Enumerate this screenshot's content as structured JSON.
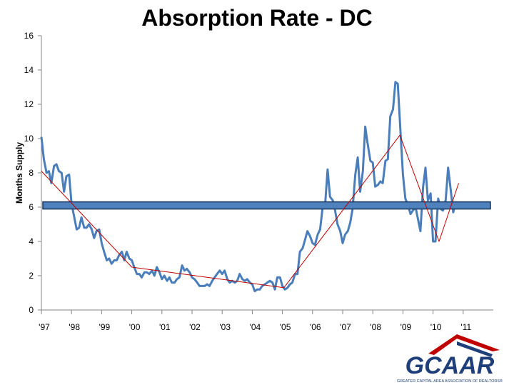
{
  "chart_data": {
    "type": "line",
    "title": "Absorption Rate - DC",
    "y_label": "Months Supply",
    "xlim": [
      1997,
      2012
    ],
    "ylim": [
      0,
      16
    ],
    "xticks": [
      {
        "value": 1997,
        "label": "'97"
      },
      {
        "value": 1998,
        "label": "'98"
      },
      {
        "value": 1999,
        "label": "'99"
      },
      {
        "value": 2000,
        "label": "'00"
      },
      {
        "value": 2001,
        "label": "'01"
      },
      {
        "value": 2002,
        "label": "'02"
      },
      {
        "value": 2003,
        "label": "'03"
      },
      {
        "value": 2004,
        "label": "'04"
      },
      {
        "value": 2005,
        "label": "'05"
      },
      {
        "value": 2006,
        "label": "'06"
      },
      {
        "value": 2007,
        "label": "'07"
      },
      {
        "value": 2008,
        "label": "'08"
      },
      {
        "value": 2009,
        "label": "'09"
      },
      {
        "value": 2010,
        "label": "'10"
      },
      {
        "value": 2011,
        "label": "'11"
      }
    ],
    "yticks": [
      0,
      2,
      4,
      6,
      8,
      10,
      12,
      14,
      16
    ],
    "reference_band": {
      "value": 6.1,
      "color": "#4f81bd",
      "edge": "#17375e"
    },
    "series": [
      {
        "color": "#4a7ebb",
        "width": 3,
        "x": [
          1997.0,
          1997.08,
          1997.17,
          1997.25,
          1997.33,
          1997.42,
          1997.5,
          1997.58,
          1997.67,
          1997.75,
          1997.83,
          1997.92,
          1998.0,
          1998.08,
          1998.17,
          1998.25,
          1998.33,
          1998.42,
          1998.5,
          1998.58,
          1998.67,
          1998.75,
          1998.83,
          1998.92,
          1999.0,
          1999.08,
          1999.17,
          1999.25,
          1999.33,
          1999.42,
          1999.5,
          1999.58,
          1999.67,
          1999.75,
          1999.83,
          1999.92,
          2000.0,
          2000.08,
          2000.17,
          2000.25,
          2000.33,
          2000.42,
          2000.5,
          2000.58,
          2000.67,
          2000.75,
          2000.83,
          2000.92,
          2001.0,
          2001.08,
          2001.17,
          2001.25,
          2001.33,
          2001.42,
          2001.5,
          2001.58,
          2001.67,
          2001.75,
          2001.83,
          2001.92,
          2002.0,
          2002.08,
          2002.17,
          2002.25,
          2002.33,
          2002.42,
          2002.5,
          2002.58,
          2002.67,
          2002.75,
          2002.83,
          2002.92,
          2003.0,
          2003.08,
          2003.17,
          2003.25,
          2003.33,
          2003.42,
          2003.5,
          2003.58,
          2003.67,
          2003.75,
          2003.83,
          2003.92,
          2004.0,
          2004.08,
          2004.17,
          2004.25,
          2004.33,
          2004.42,
          2004.5,
          2004.58,
          2004.67,
          2004.75,
          2004.83,
          2004.92,
          2005.0,
          2005.08,
          2005.17,
          2005.25,
          2005.33,
          2005.42,
          2005.5,
          2005.58,
          2005.67,
          2005.75,
          2005.83,
          2005.92,
          2006.0,
          2006.08,
          2006.17,
          2006.25,
          2006.33,
          2006.42,
          2006.5,
          2006.58,
          2006.67,
          2006.75,
          2006.83,
          2006.92,
          2007.0,
          2007.08,
          2007.17,
          2007.25,
          2007.33,
          2007.42,
          2007.5,
          2007.58,
          2007.67,
          2007.75,
          2007.83,
          2007.92,
          2008.0,
          2008.08,
          2008.17,
          2008.25,
          2008.33,
          2008.42,
          2008.5,
          2008.58,
          2008.67,
          2008.75,
          2008.83,
          2008.92,
          2009.0,
          2009.08,
          2009.17,
          2009.25,
          2009.33,
          2009.42,
          2009.5,
          2009.58,
          2009.67,
          2009.75,
          2009.83,
          2009.92,
          2010.0,
          2010.08,
          2010.17,
          2010.25,
          2010.33,
          2010.42,
          2010.5,
          2010.58,
          2010.67,
          2010.75
        ],
        "values": [
          10.1,
          8.8,
          8.0,
          8.1,
          7.4,
          8.4,
          8.5,
          8.1,
          8.0,
          6.9,
          7.8,
          7.9,
          6.2,
          5.5,
          4.7,
          4.8,
          5.4,
          4.8,
          4.8,
          5.0,
          4.7,
          4.2,
          4.6,
          4.7,
          3.9,
          3.4,
          2.9,
          3.0,
          2.7,
          2.9,
          2.9,
          3.2,
          3.4,
          2.9,
          3.4,
          3.0,
          2.9,
          2.5,
          2.1,
          2.1,
          1.9,
          2.2,
          2.2,
          2.1,
          2.3,
          2.0,
          2.5,
          2.2,
          1.8,
          2.0,
          1.7,
          1.9,
          1.6,
          1.6,
          1.8,
          1.9,
          2.6,
          2.3,
          2.4,
          2.2,
          1.9,
          1.8,
          1.6,
          1.4,
          1.4,
          1.4,
          1.5,
          1.4,
          1.7,
          1.9,
          2.1,
          2.3,
          2.1,
          2.3,
          1.8,
          1.6,
          1.7,
          1.6,
          1.7,
          2.1,
          1.8,
          1.7,
          1.8,
          1.6,
          1.5,
          1.1,
          1.2,
          1.2,
          1.4,
          1.5,
          1.6,
          1.7,
          1.6,
          1.2,
          1.9,
          1.9,
          1.4,
          1.2,
          1.3,
          1.5,
          1.6,
          2.1,
          2.1,
          3.4,
          3.6,
          4.1,
          4.6,
          4.3,
          3.9,
          3.8,
          4.4,
          4.7,
          5.9,
          6.2,
          8.2,
          6.6,
          6.4,
          5.8,
          5.0,
          4.6,
          3.9,
          4.4,
          4.6,
          5.1,
          5.9,
          7.9,
          8.9,
          6.9,
          8.1,
          10.7,
          9.7,
          8.7,
          8.6,
          7.2,
          7.3,
          7.5,
          7.4,
          8.7,
          8.8,
          11.3,
          11.7,
          13.3,
          13.2,
          10.4,
          7.9,
          6.5,
          6.1,
          5.6,
          5.8,
          6.0,
          5.3,
          4.6,
          7.2,
          8.3,
          6.4,
          6.8,
          4.0,
          4.0,
          6.5,
          5.9,
          5.8,
          6.4,
          8.3,
          7.1,
          5.7,
          6.3
        ]
      },
      {
        "color": "#c00000",
        "width": 1,
        "x": [
          1997,
          2000,
          2005.05,
          2008.9,
          2010.2,
          2010.85
        ],
        "values": [
          8.1,
          2.5,
          1.3,
          10.2,
          4.0,
          7.4
        ]
      }
    ]
  },
  "logo": {
    "name": "GCAAR",
    "tagline": "GREATER CAPITAL AREA ASSOCIATION OF REALTORS®"
  }
}
